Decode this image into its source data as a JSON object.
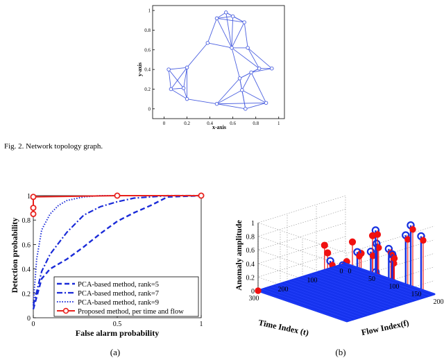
{
  "figure_caption": "Fig. 2.    Network topology graph.",
  "panel_a_label": "(a)",
  "panel_b_label": "(b)",
  "colors": {
    "network": "#4a5fe0",
    "roc_red": "#e8201c",
    "roc_blue": "#1a2bd8",
    "stem_red": "#f01010",
    "stem_blue": "#1530e0",
    "floor_blue": "#1633ee"
  },
  "chart_data": [
    {
      "id": "network",
      "type": "scatter",
      "xlabel": "x-axis",
      "ylabel": "y-axis",
      "xlim": [
        -0.1,
        1.05
      ],
      "ylim": [
        -0.1,
        1.05
      ],
      "xticks": [
        0,
        0.2,
        0.4,
        0.6,
        0.8,
        1
      ],
      "xticklabels": [
        "0",
        "0.2",
        "0.4",
        "0.6",
        "0.8",
        "1"
      ],
      "yticks": [
        0,
        0.2,
        0.4,
        0.6,
        0.8,
        1
      ],
      "yticklabels": [
        "0",
        "0.2",
        "0.4",
        "0.6",
        "0.8",
        "1"
      ],
      "nodes": [
        {
          "x": 0.54,
          "y": 0.98
        },
        {
          "x": 0.6,
          "y": 0.94
        },
        {
          "x": 0.46,
          "y": 0.92
        },
        {
          "x": 0.7,
          "y": 0.88
        },
        {
          "x": 0.38,
          "y": 0.67
        },
        {
          "x": 0.59,
          "y": 0.62
        },
        {
          "x": 0.73,
          "y": 0.62
        },
        {
          "x": 0.83,
          "y": 0.41
        },
        {
          "x": 0.94,
          "y": 0.41
        },
        {
          "x": 0.2,
          "y": 0.42
        },
        {
          "x": 0.04,
          "y": 0.4
        },
        {
          "x": 0.66,
          "y": 0.31
        },
        {
          "x": 0.76,
          "y": 0.37
        },
        {
          "x": 0.17,
          "y": 0.21
        },
        {
          "x": 0.06,
          "y": 0.2
        },
        {
          "x": 0.68,
          "y": 0.19
        },
        {
          "x": 0.2,
          "y": 0.1
        },
        {
          "x": 0.46,
          "y": 0.05
        },
        {
          "x": 0.89,
          "y": 0.06
        },
        {
          "x": 0.71,
          "y": 0.0
        }
      ],
      "edges": [
        [
          0,
          1
        ],
        [
          0,
          2
        ],
        [
          0,
          3
        ],
        [
          0,
          5
        ],
        [
          1,
          2
        ],
        [
          1,
          3
        ],
        [
          1,
          5
        ],
        [
          2,
          3
        ],
        [
          2,
          5
        ],
        [
          3,
          5
        ],
        [
          2,
          4
        ],
        [
          4,
          5
        ],
        [
          3,
          6
        ],
        [
          5,
          6
        ],
        [
          5,
          7
        ],
        [
          6,
          7
        ],
        [
          7,
          8
        ],
        [
          6,
          8
        ],
        [
          7,
          12
        ],
        [
          8,
          12
        ],
        [
          7,
          11
        ],
        [
          11,
          12
        ],
        [
          11,
          15
        ],
        [
          12,
          15
        ],
        [
          15,
          18
        ],
        [
          15,
          19
        ],
        [
          18,
          19
        ],
        [
          11,
          19
        ],
        [
          12,
          18
        ],
        [
          5,
          11
        ],
        [
          4,
          9
        ],
        [
          9,
          10
        ],
        [
          9,
          13
        ],
        [
          10,
          13
        ],
        [
          10,
          14
        ],
        [
          13,
          14
        ],
        [
          9,
          14
        ],
        [
          13,
          16
        ],
        [
          14,
          16
        ],
        [
          9,
          16
        ],
        [
          16,
          17
        ],
        [
          17,
          11
        ],
        [
          17,
          15
        ],
        [
          17,
          19
        ],
        [
          17,
          18
        ]
      ]
    },
    {
      "id": "roc",
      "type": "line",
      "xlabel": "False alarm probability",
      "ylabel": "Detection probability",
      "xlim": [
        0,
        1
      ],
      "ylim": [
        0,
        1
      ],
      "xticks": [
        0,
        0.5,
        1
      ],
      "xticklabels": [
        "0",
        "0.5",
        "1"
      ],
      "yticks": [
        0,
        0.2,
        0.4,
        0.6,
        0.8,
        1
      ],
      "yticklabels": [
        "0",
        "0.2",
        "0.4",
        "0.6",
        "0.8",
        "1"
      ],
      "legend_position": "bottom-right",
      "series": [
        {
          "name": "PCA-based method, rank=5",
          "style": "dashed",
          "color": "#1a2bd8",
          "x": [
            0,
            0.05,
            0.1,
            0.2,
            0.3,
            0.4,
            0.5,
            0.6,
            0.7,
            0.8,
            1
          ],
          "y": [
            0.07,
            0.32,
            0.4,
            0.48,
            0.58,
            0.69,
            0.79,
            0.86,
            0.92,
            0.99,
            1
          ]
        },
        {
          "name": "PCA-based method, rank=7",
          "style": "dashdot",
          "color": "#1a2bd8",
          "x": [
            0,
            0.05,
            0.1,
            0.2,
            0.3,
            0.4,
            0.5,
            0.6,
            0.7,
            0.8,
            1
          ],
          "y": [
            0.1,
            0.38,
            0.52,
            0.7,
            0.84,
            0.91,
            0.95,
            0.98,
            0.99,
            1,
            1
          ]
        },
        {
          "name": "PCA-based method, rank=9",
          "style": "dotted",
          "color": "#1a2bd8",
          "x": [
            0,
            0.02,
            0.05,
            0.1,
            0.15,
            0.2,
            0.3,
            0.4,
            0.5,
            1
          ],
          "y": [
            0.12,
            0.48,
            0.72,
            0.85,
            0.92,
            0.96,
            0.99,
            1,
            1,
            1
          ]
        },
        {
          "name": "Proposed method, per time and flow",
          "style": "solid-circle",
          "color": "#e8201c",
          "x": [
            0,
            0,
            0,
            0.5,
            1
          ],
          "y": [
            0.85,
            0.9,
            0.99,
            1,
            1
          ]
        }
      ]
    },
    {
      "id": "anomaly3d",
      "type": "scatter",
      "title": "",
      "xlabel": "Time Index (t)",
      "ylabel": "Flow Index(f)",
      "zlabel": "Anomaly amplitude",
      "xlim": [
        0,
        300
      ],
      "ylim": [
        0,
        200
      ],
      "zlim": [
        0,
        1
      ],
      "xticks": [
        0,
        100,
        200,
        300
      ],
      "xticklabels": [
        "0",
        "100",
        "200",
        "300"
      ],
      "yticks": [
        0,
        50,
        100,
        150,
        200
      ],
      "yticklabels": [
        "0",
        "50",
        "100",
        "150",
        "200"
      ],
      "zticks": [
        0,
        0.2,
        0.4,
        0.6,
        0.8,
        1
      ],
      "zticklabels": [
        "0",
        "0.2",
        "0.4",
        "0.6",
        "0.8",
        "1"
      ],
      "grid": true,
      "stems": [
        {
          "t": 290,
          "f": 150,
          "z": 0.88,
          "kind": "red"
        },
        {
          "t": 270,
          "f": 130,
          "z": 0.92,
          "kind": "red"
        },
        {
          "t": 255,
          "f": 170,
          "z": 0.75,
          "kind": "red"
        },
        {
          "t": 235,
          "f": 120,
          "z": 0.62,
          "kind": "both"
        },
        {
          "t": 220,
          "f": 160,
          "z": 0.97,
          "kind": "red"
        },
        {
          "t": 210,
          "f": 135,
          "z": 0.55,
          "kind": "red"
        },
        {
          "t": 195,
          "f": 185,
          "z": 0.85,
          "kind": "both"
        },
        {
          "t": 185,
          "f": 115,
          "z": 0.48,
          "kind": "both"
        },
        {
          "t": 175,
          "f": 150,
          "z": 0.72,
          "kind": "red"
        },
        {
          "t": 160,
          "f": 175,
          "z": 0.9,
          "kind": "both"
        },
        {
          "t": 150,
          "f": 125,
          "z": 0.65,
          "kind": "both"
        },
        {
          "t": 140,
          "f": 160,
          "z": 0.42,
          "kind": "both"
        },
        {
          "t": 125,
          "f": 190,
          "z": 0.7,
          "kind": "red"
        },
        {
          "t": 110,
          "f": 140,
          "z": 0.95,
          "kind": "both"
        },
        {
          "t": 100,
          "f": 170,
          "z": 0.58,
          "kind": "both"
        },
        {
          "t": 90,
          "f": 120,
          "z": 0.8,
          "kind": "red"
        },
        {
          "t": 80,
          "f": 150,
          "z": 0.66,
          "kind": "both"
        },
        {
          "t": 60,
          "f": 175,
          "z": 0.89,
          "kind": "both"
        },
        {
          "t": 45,
          "f": 135,
          "z": 0.5,
          "kind": "both"
        },
        {
          "t": 30,
          "f": 190,
          "z": 0.87,
          "kind": "both"
        },
        {
          "t": 20,
          "f": 160,
          "z": 0.95,
          "kind": "both"
        }
      ],
      "floor_point": {
        "t": 300,
        "f": 0,
        "z": 0.0
      }
    }
  ]
}
